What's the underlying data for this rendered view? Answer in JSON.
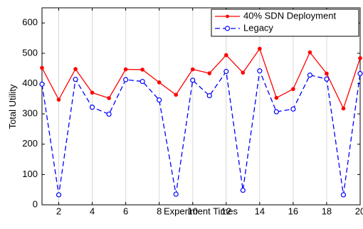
{
  "chart_data": {
    "type": "line",
    "xlabel": "Experiment Times",
    "ylabel": "Total Utility",
    "xlim": [
      1,
      20
    ],
    "ylim": [
      0,
      650
    ],
    "xticks": [
      2,
      4,
      6,
      8,
      10,
      12,
      14,
      16,
      18,
      20
    ],
    "yticks": [
      0,
      100,
      200,
      300,
      400,
      500,
      600
    ],
    "grid": "vertical",
    "legend_position": "top-right",
    "x": [
      1,
      2,
      3,
      4,
      5,
      6,
      7,
      8,
      9,
      10,
      11,
      12,
      13,
      14,
      15,
      16,
      17,
      18,
      19,
      20
    ],
    "series": [
      {
        "name": "40% SDN Deployment",
        "color": "#ff0000",
        "line_style": "solid",
        "marker": "dot",
        "values": [
          452,
          347,
          448,
          370,
          352,
          447,
          446,
          404,
          363,
          447,
          434,
          494,
          436,
          515,
          353,
          382,
          503,
          433,
          318,
          484
        ]
      },
      {
        "name": "Legacy",
        "color": "#0000ff",
        "line_style": "dashed",
        "marker": "circle",
        "values": [
          398,
          33,
          414,
          322,
          299,
          413,
          407,
          346,
          35,
          411,
          360,
          440,
          48,
          442,
          307,
          316,
          428,
          415,
          33,
          433
        ]
      }
    ]
  }
}
